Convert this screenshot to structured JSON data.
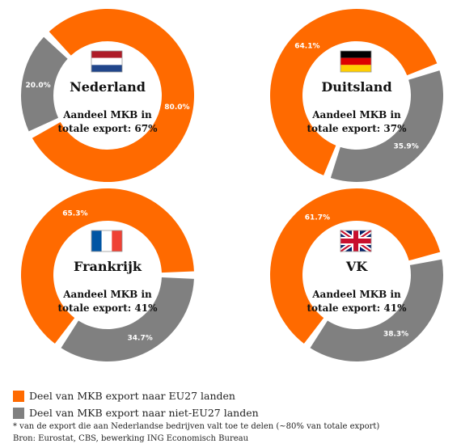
{
  "colors": {
    "eu": "#ff6a00",
    "non_eu": "#808080"
  },
  "chart_data": [
    {
      "type": "pie",
      "country": "Nederland",
      "flag": "netherlands-flag",
      "text_line1": "Aandeel MKB in",
      "text_line2": "totale export: 67%",
      "slices": [
        {
          "name": "EU27",
          "value": 80.0,
          "label": "80.0%"
        },
        {
          "name": "niet-EU27",
          "value": 20.0,
          "label": "20.0%"
        }
      ]
    },
    {
      "type": "pie",
      "country": "Duitsland",
      "flag": "germany-flag",
      "text_line1": "Aandeel MKB in",
      "text_line2": "totale export: 37%",
      "slices": [
        {
          "name": "EU27",
          "value": 64.1,
          "label": "64.1%"
        },
        {
          "name": "niet-EU27",
          "value": 35.9,
          "label": "35.9%"
        }
      ]
    },
    {
      "type": "pie",
      "country": "Frankrijk",
      "flag": "france-flag",
      "text_line1": "Aandeel MKB in",
      "text_line2": "totale export: 41%",
      "slices": [
        {
          "name": "EU27",
          "value": 65.3,
          "label": "65.3%"
        },
        {
          "name": "niet-EU27",
          "value": 34.7,
          "label": "34.7%"
        }
      ]
    },
    {
      "type": "pie",
      "country": "VK",
      "flag": "uk-flag",
      "text_line1": "Aandeel MKB in",
      "text_line2": "totale export: 41%",
      "slices": [
        {
          "name": "EU27",
          "value": 61.7,
          "label": "61.7%"
        },
        {
          "name": "niet-EU27",
          "value": 38.3,
          "label": "38.3%"
        }
      ]
    }
  ],
  "legend": {
    "eu": "Deel van MKB export naar EU27 landen",
    "non_eu": "Deel van MKB export naar niet-EU27 landen"
  },
  "footnote": "* van de export die aan Nederlandse bedrijven valt toe te delen (~80% van totale export)",
  "source": "Bron: Eurostat, CBS, bewerking ING Economisch Bureau"
}
